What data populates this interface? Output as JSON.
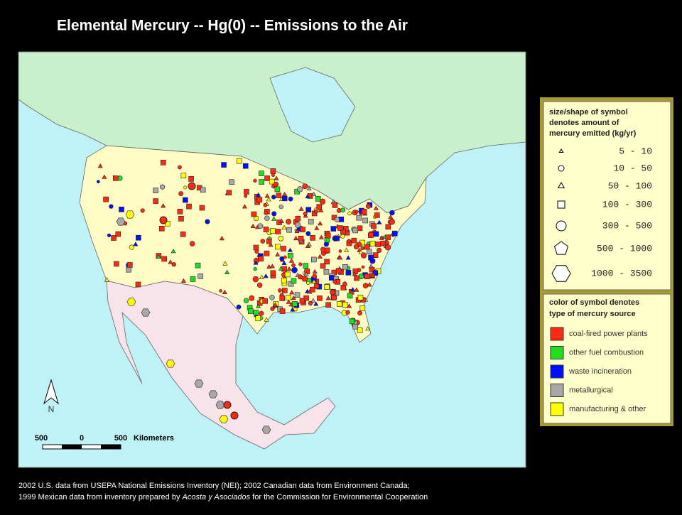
{
  "title": "Elemental Mercury -- Hg(0) -- Emissions to the Air",
  "size_legend": {
    "title": [
      "size/shape of symbol",
      "denotes amount of",
      "mercury emitted (kg/yr)"
    ],
    "ranges": [
      "5 - 10",
      "10 - 50",
      "50 - 100",
      "100 - 300",
      "300 - 500",
      "500 - 1000",
      "1000 - 3500"
    ]
  },
  "color_legend": {
    "title": [
      "color of symbol denotes",
      "type of mercury source"
    ],
    "items": [
      "coal-fired power plants",
      "other fuel combustion",
      "waste incineration",
      "metallurgical",
      "manufacturing & other"
    ]
  },
  "scale_bar": {
    "labels": [
      "500",
      "0",
      "500"
    ],
    "unit": "Kilometers"
  },
  "north": "N",
  "footnote": {
    "line1": "2002 U.S. data from USEPA National Emissions Inventory (NEI); 2002 Canadian data from Environment Canada;",
    "line2_start": "1999 Mexican data from inventory prepared by ",
    "line2_italic": "Acosta y Asociados",
    "line2_end": " for the Commission for Environmental Cooperation"
  }
}
